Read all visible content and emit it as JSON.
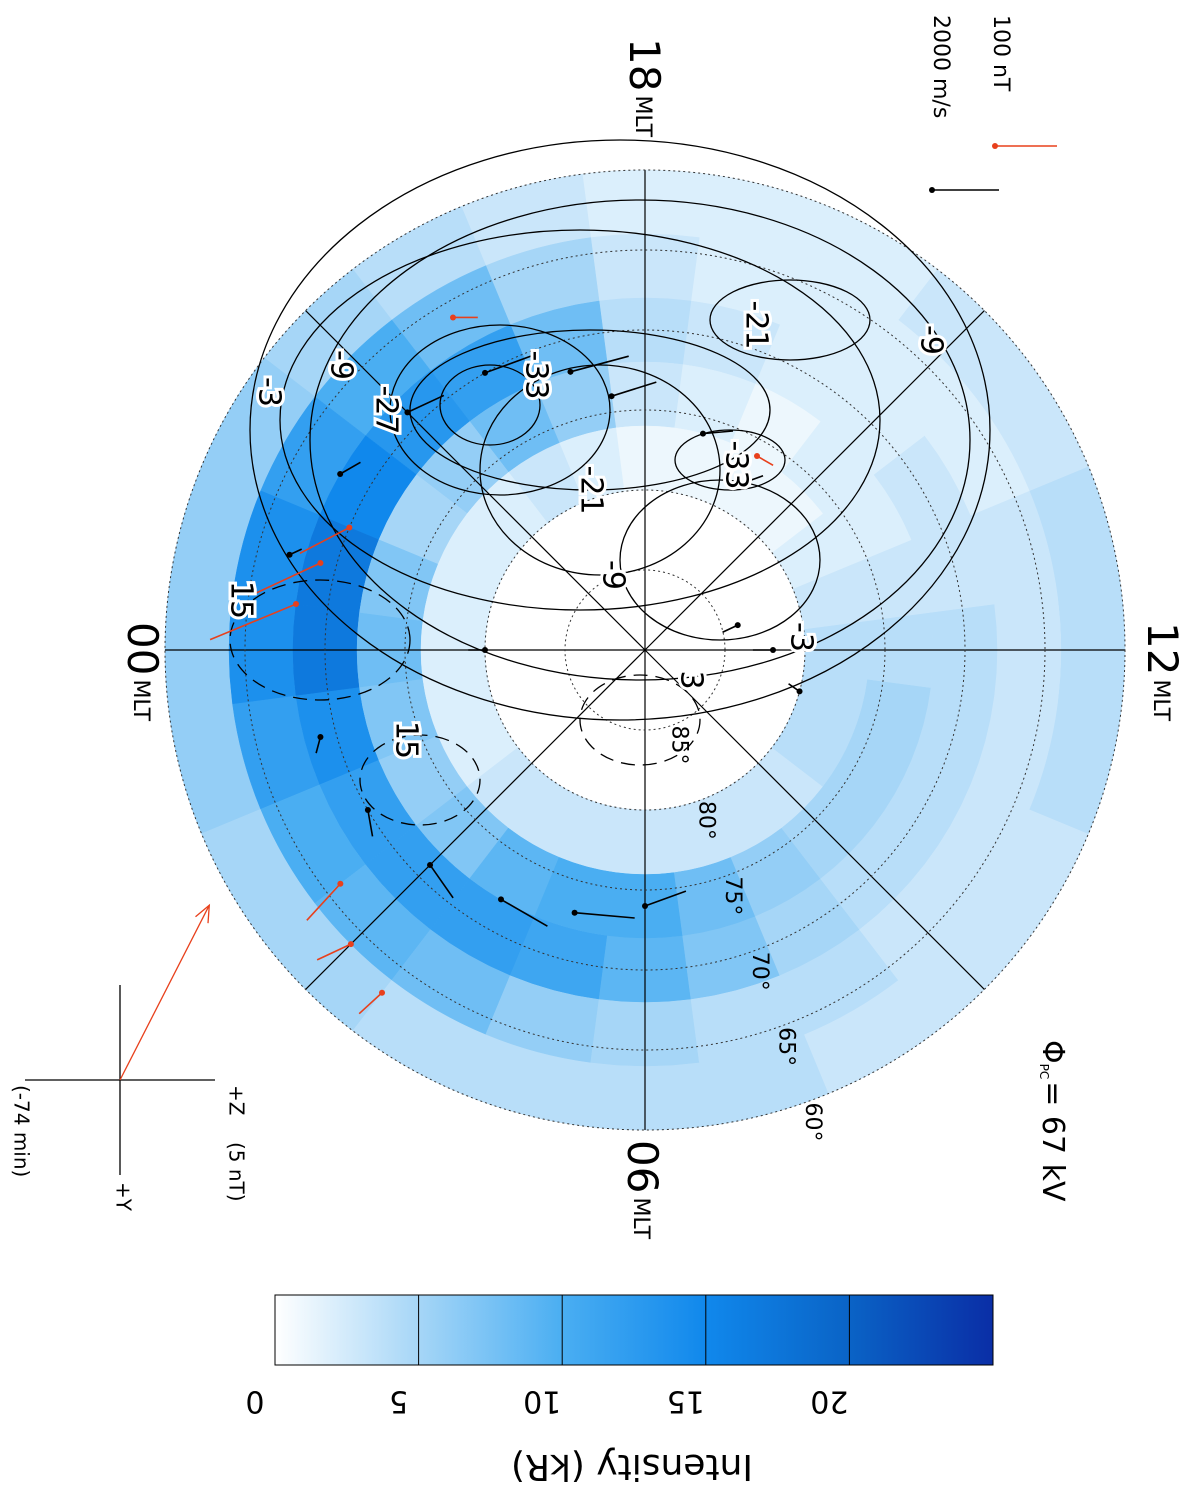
{
  "chart_data": {
    "type": "polar-map",
    "latlim": [
      60,
      90
    ],
    "lat_ticks": [
      {
        "value": 85,
        "label": "85°"
      },
      {
        "value": 80,
        "label": "80°"
      },
      {
        "value": 75,
        "label": "75°"
      },
      {
        "value": 70,
        "label": "70°"
      },
      {
        "value": 65,
        "label": "65°"
      },
      {
        "value": 60,
        "label": "60°"
      }
    ],
    "mlt_ticks": [
      {
        "value": 18,
        "label": "18"
      },
      {
        "value": 12,
        "label": "12"
      },
      {
        "value": 0,
        "label": "00"
      },
      {
        "value": 6,
        "label": "06"
      }
    ],
    "mlt_unit": "MLT",
    "mlt_grid": [
      0,
      3,
      6,
      9,
      12,
      15,
      18,
      21
    ],
    "cpcp": {
      "symbol": "Φ",
      "subscript": "PC",
      "text": "= 67 kV"
    },
    "legend": [
      {
        "label": "100 nT",
        "color": "#e8401c"
      },
      {
        "label": "2000 m/s",
        "color": "#000000"
      }
    ],
    "contours": [
      -9,
      -3,
      -27,
      -33,
      -21,
      -33,
      -21,
      -9,
      -9,
      -3,
      3,
      15,
      15
    ],
    "intensity": {
      "mlt": [
        0,
        1,
        2,
        3,
        4,
        5,
        6,
        7,
        8,
        9,
        10,
        11,
        12,
        13,
        14,
        15,
        16,
        17,
        18,
        19,
        20,
        21,
        22,
        23
      ],
      "lat": [
        62,
        66,
        70,
        74,
        78
      ],
      "values": [
        [
          6,
          6,
          5,
          5,
          4,
          4,
          4,
          4,
          3,
          3,
          3,
          4,
          4,
          4,
          3,
          3,
          2,
          2,
          2,
          3,
          4,
          5,
          6,
          6
        ],
        [
          14,
          12,
          10,
          9,
          8,
          6,
          5,
          4,
          4,
          3,
          3,
          3,
          3,
          3,
          2,
          2,
          2,
          2,
          3,
          5,
          8,
          10,
          12,
          14
        ],
        [
          17,
          14,
          12,
          12,
          12,
          11,
          9,
          7,
          5,
          4,
          4,
          4,
          4,
          3,
          3,
          2,
          2,
          3,
          4,
          8,
          12,
          13,
          15,
          17
        ],
        [
          8,
          7,
          6,
          7,
          9,
          10,
          10,
          8,
          6,
          5,
          5,
          5,
          4,
          3,
          2,
          2,
          1,
          2,
          3,
          6,
          8,
          6,
          5,
          7
        ],
        [
          2,
          2,
          2,
          3,
          3,
          3,
          3,
          3,
          3,
          3,
          4,
          4,
          4,
          3,
          2,
          1,
          1,
          1,
          1,
          2,
          3,
          2,
          2,
          2
        ]
      ]
    },
    "velocity": [
      {
        "mlt": 19,
        "lat": 72,
        "speed": 1800,
        "direction": 270
      },
      {
        "mlt": 20,
        "lat": 70,
        "speed": 1500,
        "direction": 280
      },
      {
        "mlt": 21,
        "lat": 69,
        "speed": 1200,
        "direction": 290
      },
      {
        "mlt": 18.5,
        "lat": 74,
        "speed": 1400,
        "direction": 260
      },
      {
        "mlt": 17,
        "lat": 76,
        "speed": 900,
        "direction": 250
      },
      {
        "mlt": 16,
        "lat": 78,
        "speed": 700,
        "direction": 220
      },
      {
        "mlt": 4,
        "lat": 72,
        "speed": 1600,
        "direction": 90
      },
      {
        "mlt": 5,
        "lat": 73,
        "speed": 1800,
        "direction": 80
      },
      {
        "mlt": 3,
        "lat": 71,
        "speed": 1200,
        "direction": 100
      },
      {
        "mlt": 6,
        "lat": 74,
        "speed": 1300,
        "direction": 70
      },
      {
        "mlt": 2,
        "lat": 70,
        "speed": 800,
        "direction": 110
      },
      {
        "mlt": 1,
        "lat": 69,
        "speed": 500,
        "direction": 120
      },
      {
        "mlt": 22,
        "lat": 68,
        "speed": 700,
        "direction": 300
      },
      {
        "mlt": 23,
        "lat": 67,
        "speed": 400,
        "direction": 320
      },
      {
        "mlt": 12,
        "lat": 82,
        "speed": 600,
        "direction": 0
      },
      {
        "mlt": 13,
        "lat": 84,
        "speed": 500,
        "direction": 350
      },
      {
        "mlt": 11,
        "lat": 80,
        "speed": 400,
        "direction": 20
      },
      {
        "mlt": 0,
        "lat": 80,
        "speed": 500,
        "direction": 180
      }
    ],
    "magnetometer": [
      {
        "mlt": 23.5,
        "lat": 68,
        "field": 150,
        "direction": 150
      },
      {
        "mlt": 23,
        "lat": 69,
        "field": 120,
        "direction": 140
      },
      {
        "mlt": 22.5,
        "lat": 70,
        "field": 90,
        "direction": 130
      },
      {
        "mlt": 3,
        "lat": 64,
        "field": 60,
        "direction": 200
      },
      {
        "mlt": 3.5,
        "lat": 63,
        "field": 50,
        "direction": 190
      },
      {
        "mlt": 2.5,
        "lat": 66,
        "field": 80,
        "direction": 170
      },
      {
        "mlt": 16,
        "lat": 76,
        "field": 30,
        "direction": 270
      },
      {
        "mlt": 20,
        "lat": 66,
        "field": 40,
        "direction": 300
      }
    ],
    "imf": {
      "z_label": "+Z",
      "y_label": "+Y",
      "scale_label": "(5 nT)",
      "lag_label": "(-74 min)",
      "bz": 4.7,
      "by": -9.2,
      "color": "#e8401c"
    },
    "colorbar": {
      "lim": [
        0,
        25
      ],
      "ticks": [
        0,
        5,
        10,
        15,
        20
      ],
      "label": "Intensity (kR)",
      "colors": [
        "#ffffff",
        "#a6d6f7",
        "#4aaef2",
        "#1088ec",
        "#0a63c6",
        "#0a2ea6"
      ]
    }
  }
}
